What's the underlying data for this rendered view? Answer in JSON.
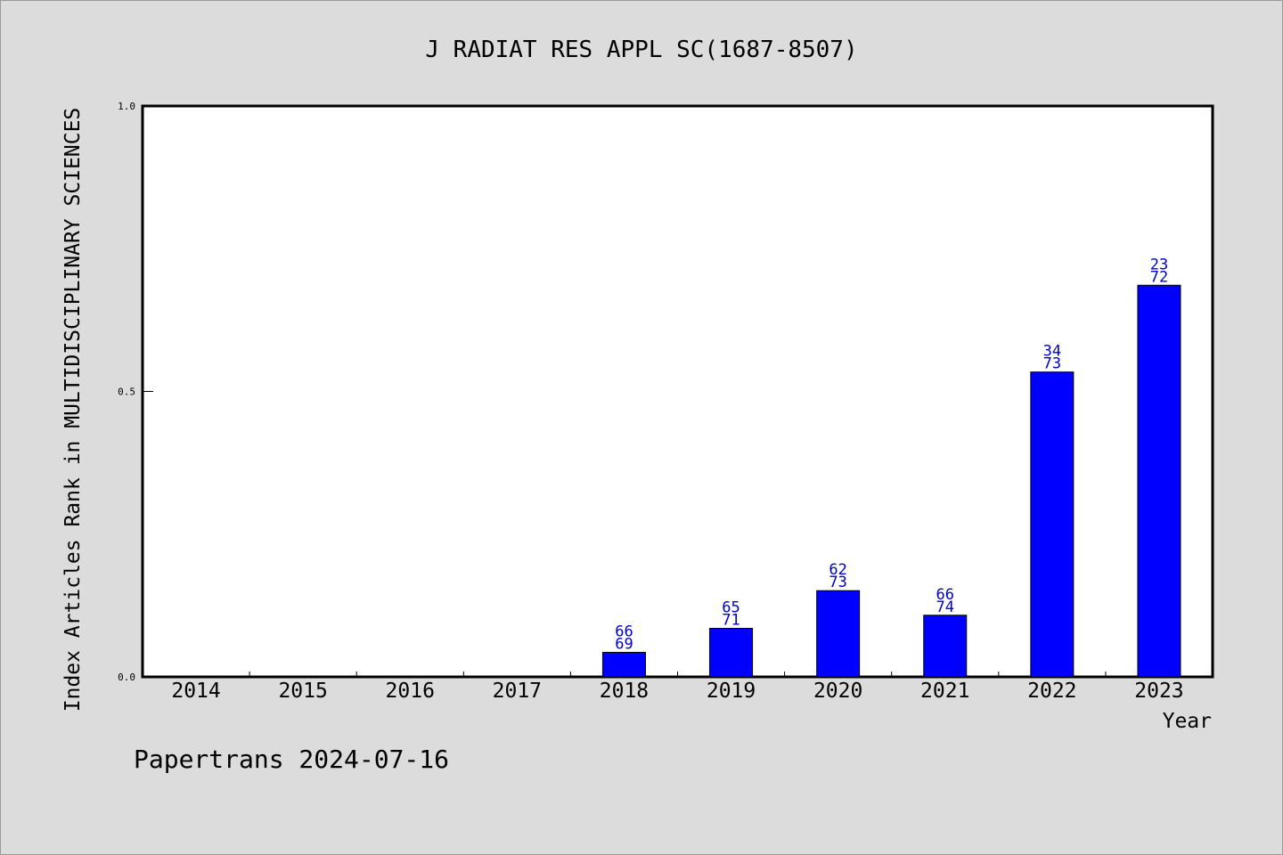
{
  "chart_data": {
    "type": "bar",
    "title": "J RADIAT RES APPL SC(1687-8507)",
    "xlabel": "Year",
    "ylabel": "Index Articles Rank in MULTIDISCIPLINARY SCIENCES",
    "ylim": [
      0,
      1
    ],
    "yticks": [
      "0.0",
      "0.5",
      "1.0"
    ],
    "categories": [
      "2014",
      "2015",
      "2016",
      "2017",
      "2018",
      "2019",
      "2020",
      "2021",
      "2022",
      "2023"
    ],
    "values": [
      0,
      0,
      0,
      0,
      0.043,
      0.085,
      0.151,
      0.108,
      0.534,
      0.686
    ],
    "label_top": [
      "",
      "",
      "",
      "",
      "66",
      "65",
      "62",
      "66",
      "34",
      "23"
    ],
    "label_bottom": [
      "",
      "",
      "",
      "",
      "69",
      "71",
      "73",
      "74",
      "73",
      "72"
    ],
    "bar_color": "#0000ff",
    "label_color": "#0000cc",
    "grid": false
  },
  "footer": "Papertrans 2024-07-16"
}
